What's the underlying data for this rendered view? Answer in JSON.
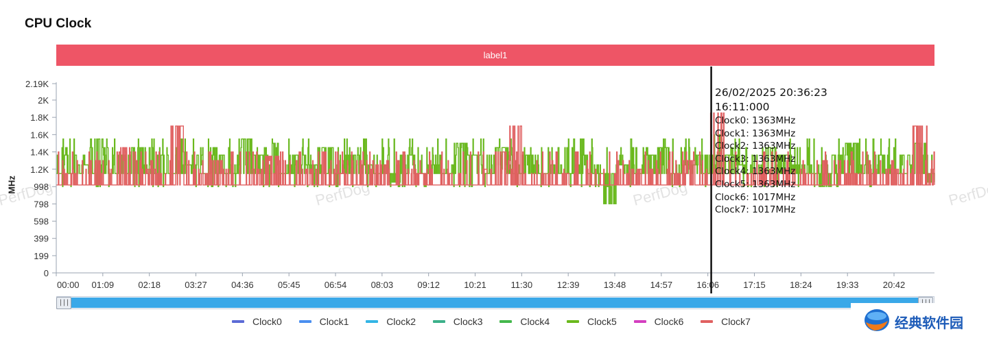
{
  "title": "CPU Clock",
  "label_band": "label1",
  "watermark": "PerfDog",
  "tooltip": {
    "datetime": "26/02/2025 20:36:23",
    "time": "16:11:000",
    "lines": [
      "Clock0: 1363MHz",
      "Clock1: 1363MHz",
      "Clock2: 1363MHz",
      "Clock3: 1363MHz",
      "Clock4: 1363MHz",
      "Clock5: 1363MHz",
      "Clock6: 1017MHz",
      "Clock7: 1017MHz"
    ]
  },
  "slider": {
    "left_handle": "|||",
    "right_handle": "|||",
    "range": [
      0,
      1
    ]
  },
  "brand": {
    "text": "经典软件园"
  },
  "colors": {
    "Clock0": "#5c6bd6",
    "Clock1": "#4a8ff0",
    "Clock2": "#33b5e5",
    "Clock3": "#3cb08a",
    "Clock4": "#44b84c",
    "Clock5": "#6ab91c",
    "Clock6": "#d43fc0",
    "Clock7": "#e06060",
    "band": "#ee5566",
    "slider": "#3aa8e8"
  },
  "chart_data": {
    "type": "line",
    "title": "CPU Clock",
    "ylabel": "MHz",
    "xlabel": "",
    "ylim": [
      0,
      2190
    ],
    "ytick_labels": [
      "0",
      "199",
      "399",
      "598",
      "798",
      "998",
      "1.2K",
      "1.4K",
      "1.6K",
      "1.8K",
      "2K",
      "2.19K"
    ],
    "ytick_values": [
      0,
      199,
      399,
      598,
      798,
      998,
      1200,
      1400,
      1600,
      1800,
      2000,
      2190
    ],
    "xtick_labels": [
      "00:00",
      "01:09",
      "02:18",
      "03:27",
      "04:36",
      "05:45",
      "06:54",
      "08:03",
      "09:12",
      "10:21",
      "11:30",
      "12:39",
      "13:48",
      "14:57",
      "16:06",
      "17:15",
      "18:24",
      "19:33",
      "20:42"
    ],
    "xlim_minutes": [
      0,
      1302
    ],
    "cursor_minute": 971,
    "legend": [
      "Clock0",
      "Clock1",
      "Clock2",
      "Clock3",
      "Clock4",
      "Clock5",
      "Clock6",
      "Clock7"
    ],
    "legend_position": "bottom",
    "series": [
      {
        "name": "Clock5",
        "group": "Clock0-Clock5",
        "x": [
          0,
          20,
          40,
          60,
          80,
          100,
          120,
          140,
          160,
          180,
          200,
          220,
          240,
          260,
          280,
          300,
          320,
          340,
          360,
          380,
          400,
          420,
          440,
          460,
          480,
          500,
          520,
          540,
          560,
          580,
          600,
          620,
          640,
          660,
          680,
          700,
          720,
          740,
          760,
          780,
          800,
          820,
          840,
          860,
          880,
          900,
          920,
          940,
          960,
          980,
          1000,
          1020,
          1040,
          1060,
          1080,
          1100,
          1120,
          1140,
          1160,
          1180,
          1200,
          1220,
          1240,
          1260,
          1280,
          1302
        ],
        "y": [
          1150,
          1363,
          1250,
          1550,
          1150,
          1363,
          1450,
          1150,
          1363,
          1150,
          1250,
          1150,
          1363,
          1150,
          1550,
          1363,
          1500,
          1150,
          1363,
          1250,
          1450,
          1150,
          1363,
          1250,
          1150,
          1050,
          1363,
          1150,
          1250,
          1150,
          1500,
          1363,
          1150,
          1450,
          1150,
          1363,
          1150,
          1250,
          1150,
          1363,
          1150,
          800,
          1250,
          1150,
          1363,
          1450,
          1150,
          1250,
          1363,
          1600,
          1363,
          1250,
          1150,
          1450,
          1363,
          1250,
          1150,
          1000,
          1363,
          1500,
          1250,
          1363,
          1150,
          1363,
          1500,
          1050
        ]
      },
      {
        "name": "Clock7",
        "group": "Clock6-Clock7",
        "x": [
          0,
          20,
          40,
          60,
          80,
          100,
          120,
          140,
          160,
          180,
          200,
          220,
          240,
          260,
          280,
          300,
          320,
          340,
          360,
          380,
          400,
          420,
          440,
          460,
          480,
          500,
          520,
          540,
          560,
          580,
          600,
          620,
          640,
          660,
          680,
          700,
          720,
          740,
          760,
          780,
          800,
          820,
          840,
          860,
          880,
          900,
          920,
          940,
          960,
          980,
          1000,
          1020,
          1040,
          1060,
          1080,
          1100,
          1120,
          1140,
          1160,
          1180,
          1200,
          1220,
          1240,
          1260,
          1280,
          1302
        ],
        "y": [
          1017,
          1150,
          1017,
          1300,
          1017,
          1450,
          1017,
          1200,
          1017,
          1700,
          1017,
          1150,
          1300,
          1017,
          1017,
          1200,
          1350,
          1017,
          1017,
          1200,
          1017,
          1150,
          1017,
          1017,
          1250,
          1017,
          1017,
          1150,
          1017,
          1017,
          1017,
          1017,
          1200,
          1400,
          1700,
          1017,
          1017,
          1017,
          1150,
          1017,
          1017,
          1017,
          1017,
          1200,
          1017,
          1017,
          1150,
          1300,
          1017,
          1850,
          1017,
          1017,
          1150,
          1017,
          1017,
          1200,
          1017,
          1017,
          1017,
          1150,
          1017,
          1017,
          1200,
          1017,
          1700,
          1017
        ]
      }
    ]
  }
}
